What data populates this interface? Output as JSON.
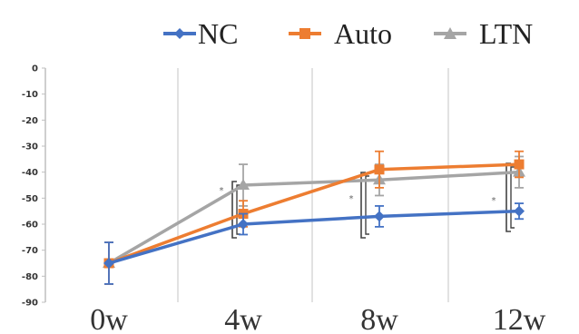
{
  "chart_data": {
    "type": "line",
    "categories": [
      "0w",
      "4w",
      "8w",
      "12w"
    ],
    "ylim": [
      -90,
      0
    ],
    "yticks": [
      0,
      -10,
      -20,
      -30,
      -40,
      -50,
      -60,
      -70,
      -80,
      -90
    ],
    "grid": "vertical",
    "legend_position": "top",
    "series": [
      {
        "name": "NC",
        "color": "#4472C4",
        "values": [
          -75,
          -60,
          -57,
          -55
        ],
        "errors": [
          8,
          4,
          4,
          3
        ]
      },
      {
        "name": "Auto",
        "color": "#ED7D31",
        "values": [
          -75,
          -56,
          -39,
          -37
        ],
        "errors": [
          8,
          5,
          7,
          5
        ]
      },
      {
        "name": "LTN",
        "color": "#A5A5A5",
        "values": [
          -75,
          -45,
          -43,
          -40
        ],
        "errors": [
          8,
          8,
          6,
          6
        ]
      }
    ],
    "significance_markers": [
      "*",
      "*",
      "*"
    ]
  }
}
